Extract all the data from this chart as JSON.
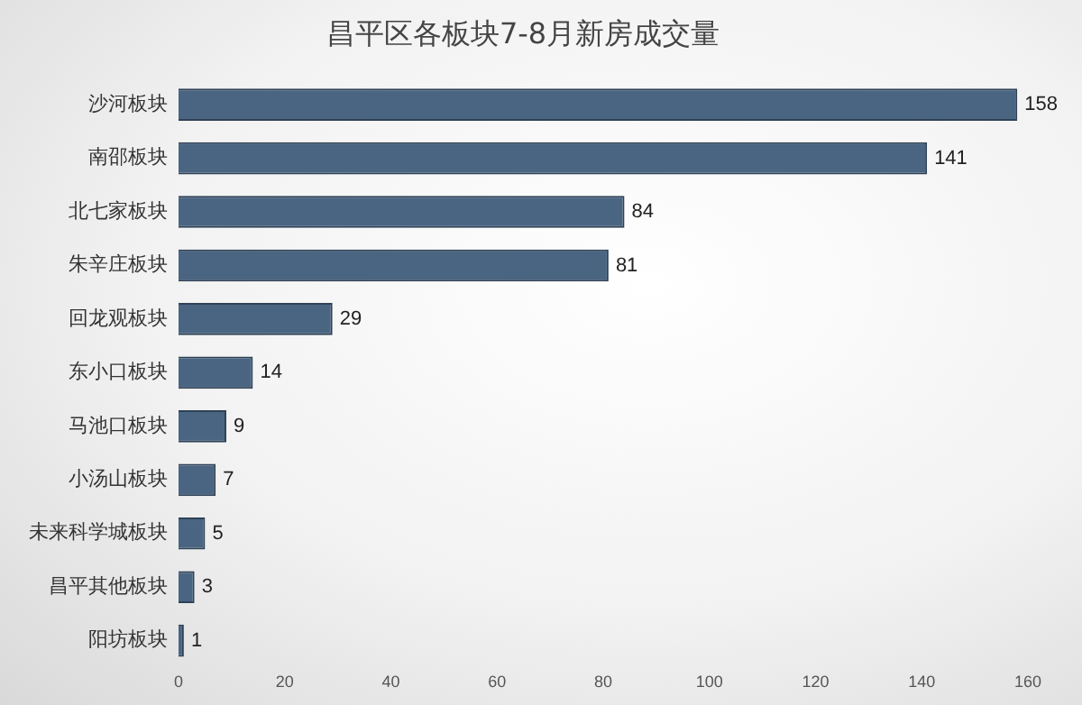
{
  "chart_data": {
    "type": "bar",
    "orientation": "horizontal",
    "title": "昌平区各板块7-8月新房成交量",
    "categories": [
      "沙河板块",
      "南邵板块",
      "北七家板块",
      "朱辛庄板块",
      "回龙观板块",
      "东小口板块",
      "马池口板块",
      "小汤山板块",
      "未来科学城板块",
      "昌平其他板块",
      "阳坊板块"
    ],
    "values": [
      158,
      141,
      84,
      81,
      29,
      14,
      9,
      7,
      5,
      3,
      1
    ],
    "color": "#4a6582",
    "xlim": [
      0,
      160
    ],
    "xticks": [
      0,
      20,
      40,
      60,
      80,
      100,
      120,
      140,
      160
    ],
    "grid": false,
    "legend": false,
    "data_labels": true
  }
}
